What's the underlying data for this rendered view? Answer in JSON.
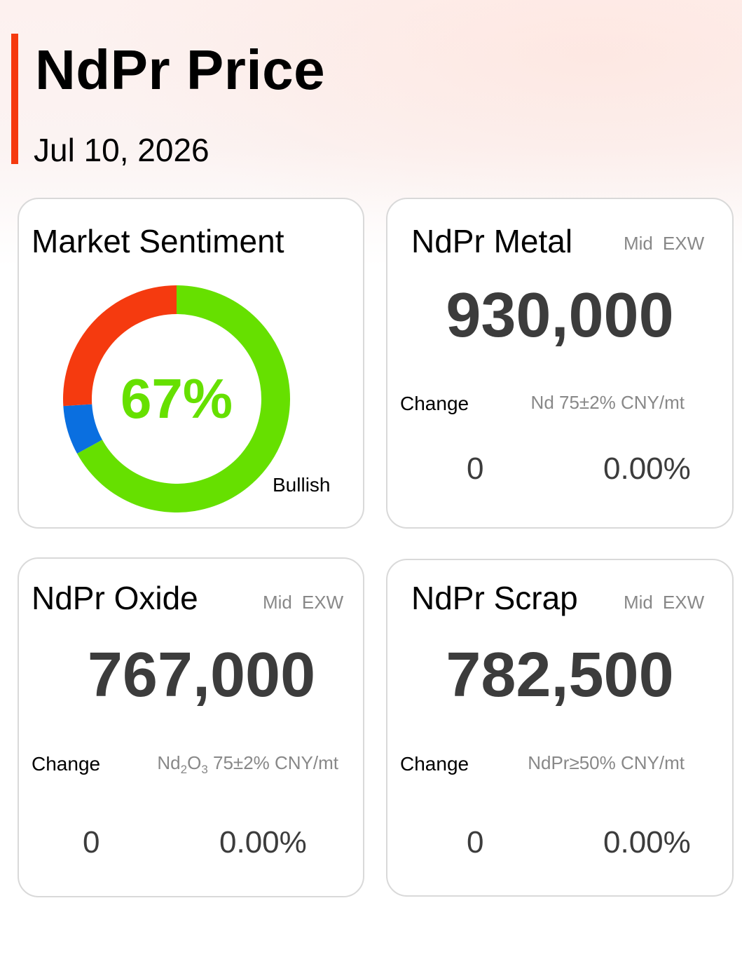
{
  "header": {
    "title": "NdPr Price",
    "date": "Jul 10, 2026"
  },
  "colors": {
    "accent": "#f53a0f",
    "bullish": "#66e000",
    "bearish": "#f53a0f",
    "neutral": "#0a6fe0"
  },
  "sentiment": {
    "title": "Market Sentiment",
    "value": "67%",
    "label": "Bullish",
    "segments": [
      {
        "name": "bullish",
        "fraction": 0.67,
        "color": "#66e000"
      },
      {
        "name": "neutral",
        "fraction": 0.07,
        "color": "#0a6fe0"
      },
      {
        "name": "bearish",
        "fraction": 0.26,
        "color": "#f53a0f"
      }
    ]
  },
  "metal": {
    "title": "NdPr Metal",
    "tag1": "Mid",
    "tag2": "EXW",
    "price": "930,000",
    "change_label": "Change",
    "spec": "Nd 75±2% CNY/mt",
    "change": "0",
    "change_pct": "0.00%"
  },
  "oxide": {
    "title": "NdPr Oxide",
    "tag1": "Mid",
    "tag2": "EXW",
    "price": "767,000",
    "change_label": "Change",
    "spec_formula_a": "Nd",
    "spec_formula_sub_a": "2",
    "spec_formula_b": "O",
    "spec_formula_sub_b": "3",
    "spec_rest": " 75±2% CNY/mt",
    "change": "0",
    "change_pct": "0.00%"
  },
  "scrap": {
    "title": "NdPr Scrap",
    "tag1": "Mid",
    "tag2": "EXW",
    "price": "782,500",
    "change_label": "Change",
    "spec": "NdPr≥50% CNY/mt",
    "change": "0",
    "change_pct": "0.00%"
  }
}
